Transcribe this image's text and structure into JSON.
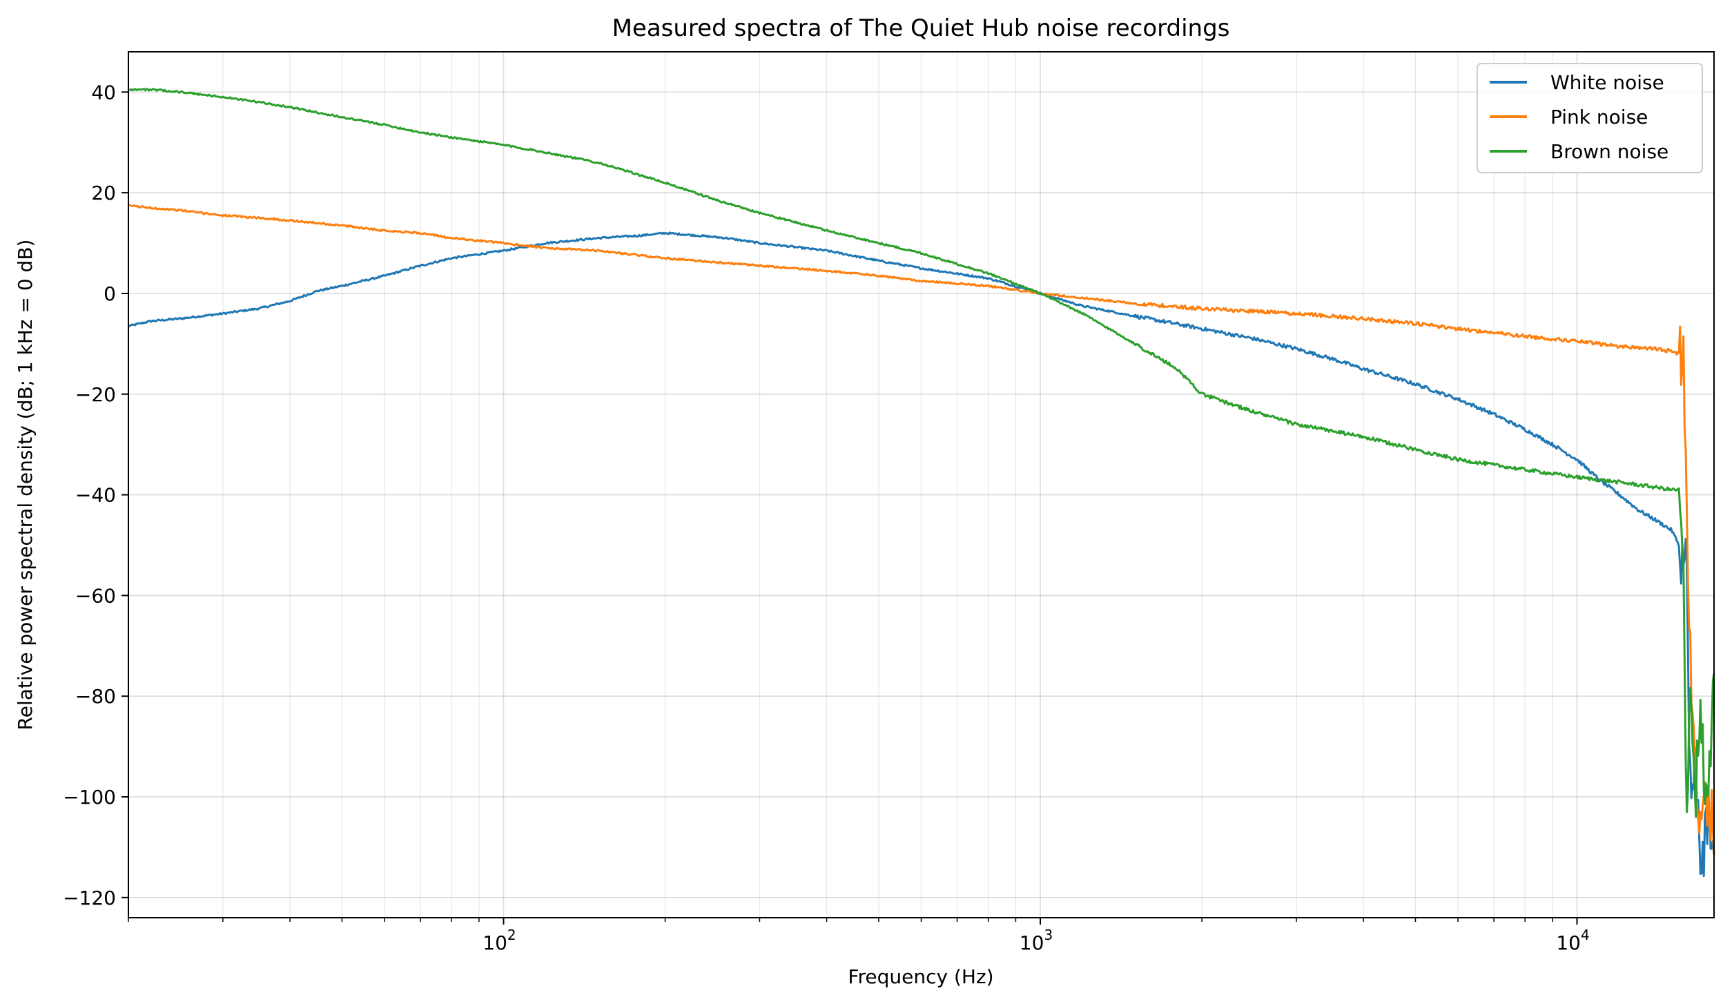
{
  "chart_data": {
    "type": "line",
    "title": "Measured spectra of The Quiet Hub noise recordings",
    "xlabel": "Frequency (Hz)",
    "ylabel": "Relative power spectral density (dB; 1 kHz = 0 dB)",
    "xscale": "log",
    "xlim": [
      20,
      18000
    ],
    "ylim": [
      -124,
      48
    ],
    "grid": true,
    "legend_position": "top-right",
    "y_ticks": [
      40,
      20,
      0,
      -20,
      -40,
      -60,
      -80,
      -100,
      -120
    ],
    "y_tick_labels": [
      "40",
      "20",
      "0",
      "−20",
      "−40",
      "−60",
      "−80",
      "−100",
      "−120"
    ],
    "x_ticks": [
      {
        "value": 100,
        "base": "10",
        "exp": "2"
      },
      {
        "value": 1000,
        "base": "10",
        "exp": "3"
      },
      {
        "value": 10000,
        "base": "10",
        "exp": "4"
      }
    ],
    "series": [
      {
        "name": "White noise",
        "color": "#1f77b4",
        "x": [
          20,
          22,
          25,
          30,
          35,
          40,
          45,
          50,
          60,
          70,
          80,
          100,
          120,
          150,
          180,
          200,
          230,
          260,
          300,
          400,
          500,
          600,
          800,
          1000,
          1200,
          1500,
          2000,
          2500,
          3000,
          3500,
          4000,
          5000,
          6000,
          7000,
          8000,
          9000,
          10000,
          11000,
          12000,
          13000,
          14000,
          15000,
          15500,
          16000,
          16300,
          16600,
          17000,
          17500,
          18000
        ],
        "y": [
          -6.5,
          -5.5,
          -5,
          -4,
          -3,
          -1.5,
          0.5,
          1.5,
          3.5,
          5.5,
          7,
          8.5,
          10,
          11,
          11.5,
          12,
          11.5,
          11,
          10,
          8.5,
          6.5,
          5,
          3,
          0,
          -2.5,
          -4.5,
          -7,
          -9,
          -11,
          -13,
          -15,
          -18,
          -21,
          -24,
          -27,
          -30,
          -33,
          -37,
          -40,
          -43,
          -45,
          -47,
          -50,
          -55,
          -103,
          -95,
          -112,
          -106,
          -108
        ]
      },
      {
        "name": "Pink noise",
        "color": "#ff7f0e",
        "x": [
          20,
          22,
          25,
          30,
          35,
          40,
          50,
          60,
          70,
          80,
          100,
          120,
          150,
          200,
          300,
          400,
          500,
          600,
          800,
          1000,
          1500,
          2000,
          3000,
          4000,
          5000,
          6000,
          8000,
          10000,
          12000,
          14000,
          15000,
          15500,
          15800,
          16000,
          16300,
          16600,
          17000,
          17500,
          18000
        ],
        "y": [
          17.5,
          17,
          16.5,
          15.5,
          15,
          14.5,
          13.5,
          12.5,
          12,
          11,
          10,
          9,
          8.5,
          7,
          5.5,
          4.5,
          3.5,
          2.5,
          1.5,
          0,
          -2,
          -3,
          -4,
          -5,
          -6,
          -7,
          -8.5,
          -9.5,
          -10.5,
          -11,
          -11.5,
          -12,
          -11,
          -40,
          -80,
          -95,
          -103,
          -100,
          -105
        ]
      },
      {
        "name": "Brown noise",
        "color": "#2ca02c",
        "x": [
          20,
          22,
          25,
          30,
          35,
          40,
          50,
          60,
          70,
          80,
          100,
          120,
          150,
          200,
          250,
          300,
          400,
          500,
          600,
          800,
          1000,
          1200,
          1500,
          1800,
          2000,
          2500,
          3000,
          4000,
          5000,
          6000,
          8000,
          10000,
          12000,
          14000,
          15000,
          15500,
          15800,
          16000,
          16300,
          16600,
          17000,
          17500,
          18000
        ],
        "y": [
          40.5,
          40.5,
          40,
          39,
          38,
          37,
          35,
          33.5,
          32,
          31,
          29.5,
          28,
          26,
          22,
          18.5,
          16,
          12.5,
          10,
          8,
          4,
          0,
          -4,
          -10,
          -15,
          -20,
          -23.5,
          -26,
          -28.5,
          -31,
          -33,
          -35,
          -36.5,
          -37.5,
          -38.5,
          -39,
          -39,
          -60,
          -100,
          -75,
          -100,
          -85,
          -105,
          -70
        ]
      }
    ]
  }
}
